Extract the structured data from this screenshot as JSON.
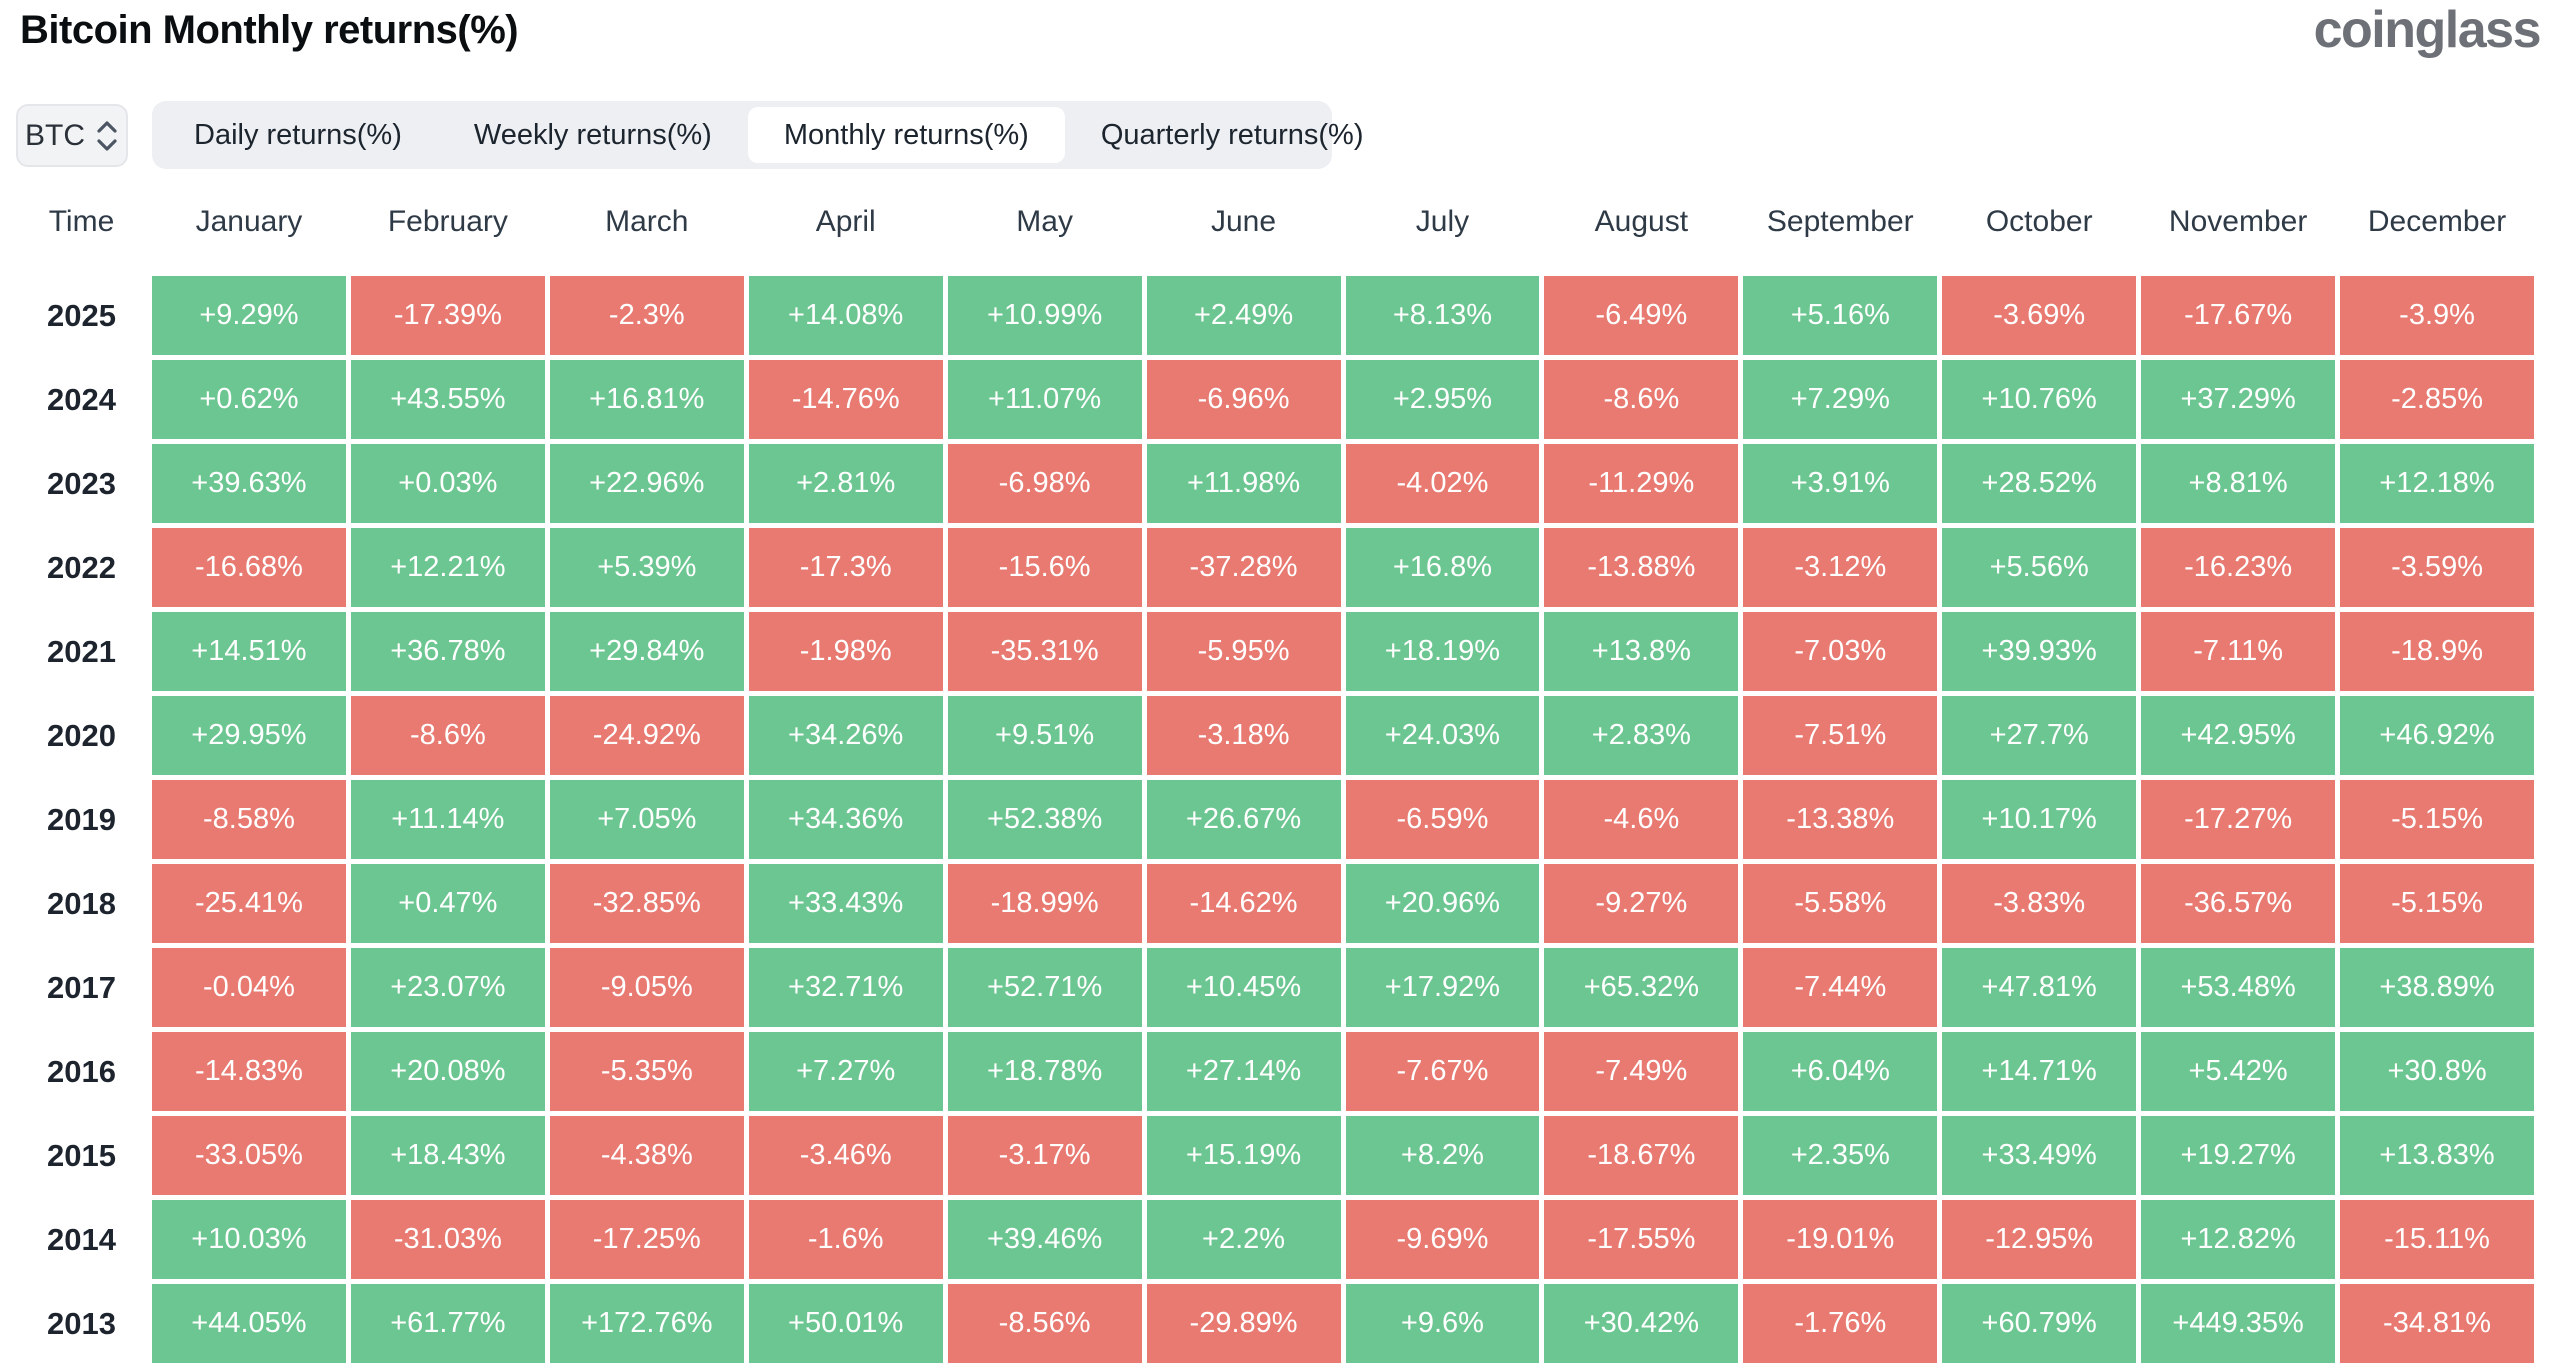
{
  "page": {
    "title": "Bitcoin Monthly returns(%)",
    "logo_text": "coinglass"
  },
  "controls": {
    "symbol_selector": {
      "value": "BTC"
    },
    "tabs": [
      {
        "label": "Daily returns(%)",
        "active": false
      },
      {
        "label": "Weekly returns(%)",
        "active": false
      },
      {
        "label": "Monthly returns(%)",
        "active": true
      },
      {
        "label": "Quarterly returns(%)",
        "active": false
      }
    ]
  },
  "chart_data": {
    "type": "heatmap",
    "title": "Bitcoin Monthly returns(%)",
    "time_column_label": "Time",
    "columns": [
      "January",
      "February",
      "March",
      "April",
      "May",
      "June",
      "July",
      "August",
      "September",
      "October",
      "November",
      "December"
    ],
    "colors": {
      "positive": "#6cc691",
      "negative": "#e87a71",
      "cell_text": "#ffffff"
    },
    "rows": [
      {
        "year": "2025",
        "values": [
          "+9.29%",
          "-17.39%",
          "-2.3%",
          "+14.08%",
          "+10.99%",
          "+2.49%",
          "+8.13%",
          "-6.49%",
          "+5.16%",
          "-3.69%",
          "-17.67%",
          "-3.9%"
        ]
      },
      {
        "year": "2024",
        "values": [
          "+0.62%",
          "+43.55%",
          "+16.81%",
          "-14.76%",
          "+11.07%",
          "-6.96%",
          "+2.95%",
          "-8.6%",
          "+7.29%",
          "+10.76%",
          "+37.29%",
          "-2.85%"
        ]
      },
      {
        "year": "2023",
        "values": [
          "+39.63%",
          "+0.03%",
          "+22.96%",
          "+2.81%",
          "-6.98%",
          "+11.98%",
          "-4.02%",
          "-11.29%",
          "+3.91%",
          "+28.52%",
          "+8.81%",
          "+12.18%"
        ]
      },
      {
        "year": "2022",
        "values": [
          "-16.68%",
          "+12.21%",
          "+5.39%",
          "-17.3%",
          "-15.6%",
          "-37.28%",
          "+16.8%",
          "-13.88%",
          "-3.12%",
          "+5.56%",
          "-16.23%",
          "-3.59%"
        ]
      },
      {
        "year": "2021",
        "values": [
          "+14.51%",
          "+36.78%",
          "+29.84%",
          "-1.98%",
          "-35.31%",
          "-5.95%",
          "+18.19%",
          "+13.8%",
          "-7.03%",
          "+39.93%",
          "-7.11%",
          "-18.9%"
        ]
      },
      {
        "year": "2020",
        "values": [
          "+29.95%",
          "-8.6%",
          "-24.92%",
          "+34.26%",
          "+9.51%",
          "-3.18%",
          "+24.03%",
          "+2.83%",
          "-7.51%",
          "+27.7%",
          "+42.95%",
          "+46.92%"
        ]
      },
      {
        "year": "2019",
        "values": [
          "-8.58%",
          "+11.14%",
          "+7.05%",
          "+34.36%",
          "+52.38%",
          "+26.67%",
          "-6.59%",
          "-4.6%",
          "-13.38%",
          "+10.17%",
          "-17.27%",
          "-5.15%"
        ]
      },
      {
        "year": "2018",
        "values": [
          "-25.41%",
          "+0.47%",
          "-32.85%",
          "+33.43%",
          "-18.99%",
          "-14.62%",
          "+20.96%",
          "-9.27%",
          "-5.58%",
          "-3.83%",
          "-36.57%",
          "-5.15%"
        ]
      },
      {
        "year": "2017",
        "values": [
          "-0.04%",
          "+23.07%",
          "-9.05%",
          "+32.71%",
          "+52.71%",
          "+10.45%",
          "+17.92%",
          "+65.32%",
          "-7.44%",
          "+47.81%",
          "+53.48%",
          "+38.89%"
        ]
      },
      {
        "year": "2016",
        "values": [
          "-14.83%",
          "+20.08%",
          "-5.35%",
          "+7.27%",
          "+18.78%",
          "+27.14%",
          "-7.67%",
          "-7.49%",
          "+6.04%",
          "+14.71%",
          "+5.42%",
          "+30.8%"
        ]
      },
      {
        "year": "2015",
        "values": [
          "-33.05%",
          "+18.43%",
          "-4.38%",
          "-3.46%",
          "-3.17%",
          "+15.19%",
          "+8.2%",
          "-18.67%",
          "+2.35%",
          "+33.49%",
          "+19.27%",
          "+13.83%"
        ]
      },
      {
        "year": "2014",
        "values": [
          "+10.03%",
          "-31.03%",
          "-17.25%",
          "-1.6%",
          "+39.46%",
          "+2.2%",
          "-9.69%",
          "-17.55%",
          "-19.01%",
          "-12.95%",
          "+12.82%",
          "-15.11%"
        ]
      },
      {
        "year": "2013",
        "values": [
          "+44.05%",
          "+61.77%",
          "+172.76%",
          "+50.01%",
          "-8.56%",
          "-29.89%",
          "+9.6%",
          "+30.42%",
          "-1.76%",
          "+60.79%",
          "+449.35%",
          "-34.81%"
        ]
      }
    ]
  }
}
